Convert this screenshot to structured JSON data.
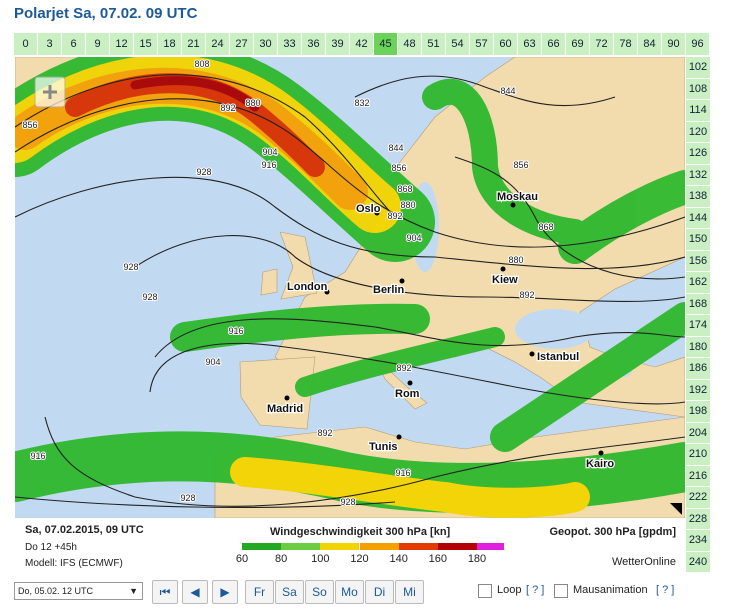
{
  "header": {
    "title": "Polarjet Sa, 07.02. 09 UTC"
  },
  "timeline": {
    "top": [
      "0",
      "3",
      "6",
      "9",
      "12",
      "15",
      "18",
      "21",
      "24",
      "27",
      "30",
      "33",
      "36",
      "39",
      "42",
      "45",
      "48",
      "51",
      "54",
      "57",
      "60",
      "63",
      "66",
      "69",
      "72",
      "78",
      "84",
      "90",
      "96"
    ],
    "right": [
      "102",
      "108",
      "114",
      "120",
      "126",
      "132",
      "138",
      "144",
      "150",
      "156",
      "162",
      "168",
      "174",
      "180",
      "186",
      "192",
      "198",
      "204",
      "210",
      "216",
      "222",
      "228",
      "234",
      "240"
    ],
    "selected": "45"
  },
  "map": {
    "cities": [
      "Oslo",
      "Moskau",
      "London",
      "Berlin",
      "Kiew",
      "Istanbul",
      "Madrid",
      "Rom",
      "Tunis",
      "Kairo"
    ],
    "contour_labels": [
      "832",
      "844",
      "844",
      "856",
      "856",
      "868",
      "880",
      "892",
      "904",
      "868",
      "880",
      "892",
      "928",
      "928",
      "928",
      "916",
      "904",
      "892",
      "892",
      "916",
      "928",
      "928",
      "916",
      "892",
      "880",
      "856",
      "904",
      "916",
      "808"
    ]
  },
  "footer": {
    "date": "Sa, 07.02.2015, 09 UTC",
    "run": "Do 12 +45h",
    "model": "Modell: IFS (ECMWF)",
    "legend_title": "Windgeschwindigkeit 300 hPa [kn]",
    "legend_ticks": [
      60,
      80,
      100,
      120,
      140,
      160,
      180
    ],
    "legend_colors": [
      "#22a822",
      "#6ccc44",
      "#f2d400",
      "#f4a000",
      "#e23a00",
      "#b40000",
      "#e020e0"
    ],
    "geo_title": "Geopot. 300 hPa [gpdm]",
    "brand": "WetterOnline"
  },
  "controls": {
    "select": "Do, 05.02. 12 UTC",
    "nav_days": [
      "Fr",
      "Sa",
      "So",
      "Mo",
      "Di",
      "Mi"
    ],
    "loop": "Loop",
    "help": "[ ? ]",
    "mouse": "Mausanimation"
  }
}
